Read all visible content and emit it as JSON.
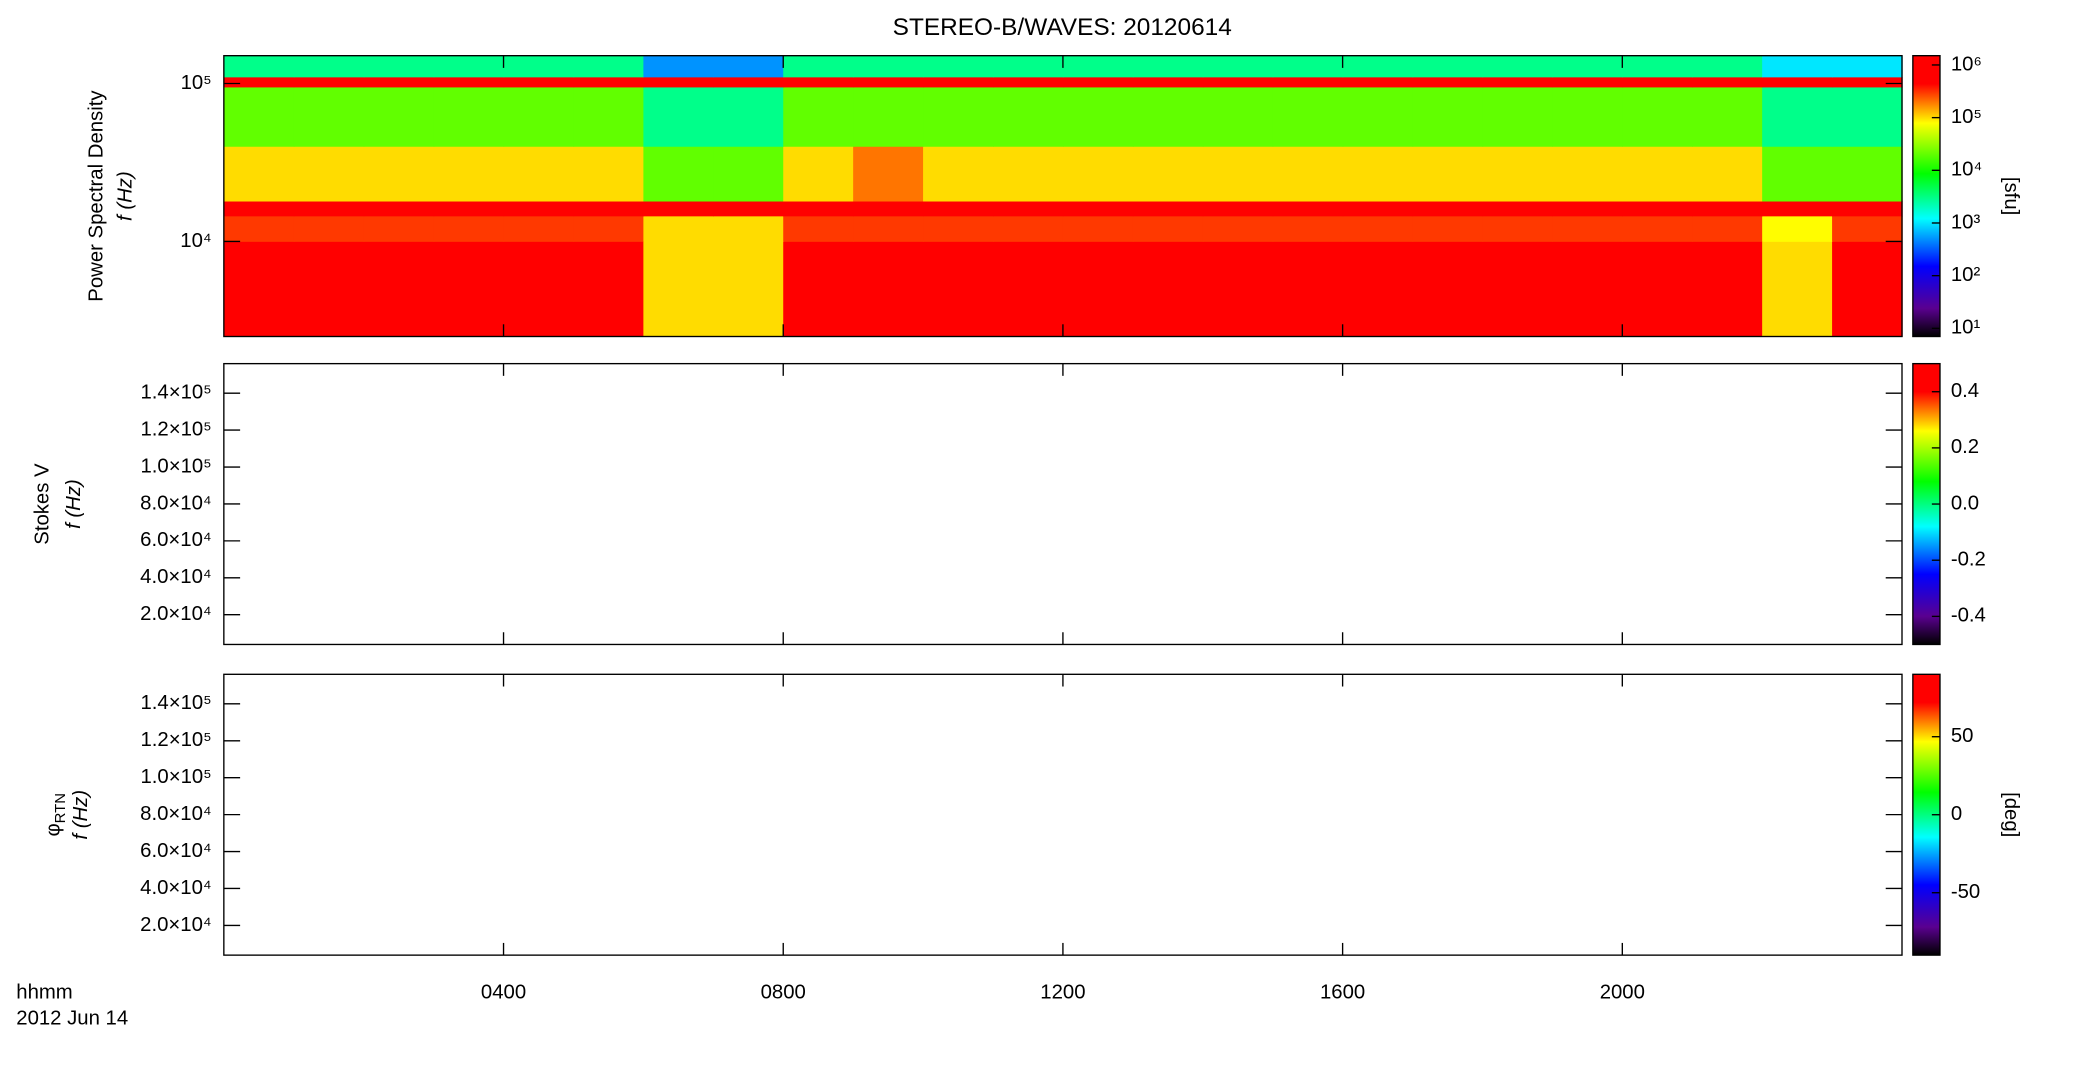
{
  "chart_data": [
    {
      "type": "heatmap",
      "title": "STEREO-B/WAVES: 20120614",
      "ylabel": "Power Spectral Density",
      "ylabel2": "f (Hz)",
      "ylog": true,
      "xlim": [
        0,
        24
      ],
      "xticks": [
        4,
        8,
        12,
        16,
        20
      ],
      "ylim": [
        2500,
        150000
      ],
      "yticks": [
        {
          "value": 10000,
          "label": "10⁴"
        },
        {
          "value": 100000,
          "label": "10⁵"
        }
      ],
      "xbins": [
        0,
        1,
        2,
        3,
        4,
        5,
        6,
        7,
        8,
        9,
        10,
        11,
        12,
        13,
        14,
        15,
        16,
        17,
        18,
        19,
        20,
        21,
        22,
        23,
        24
      ],
      "ybins": [
        2500,
        10000,
        14500,
        18000,
        40000,
        95000,
        110000,
        150000
      ],
      "z": [
        [
          1000000,
          1000000,
          1000000,
          1000000,
          1000000,
          1000000,
          100000,
          100000,
          800000,
          800000,
          1000000,
          1000000,
          1000000,
          1000000,
          1000000,
          1000000,
          1000000,
          1000000,
          1000000,
          1000000,
          1000000,
          1000000,
          100000,
          1000000
        ],
        [
          300000,
          300000,
          300000,
          300000,
          300000,
          300000,
          100000,
          100000,
          300000,
          300000,
          300000,
          300000,
          300000,
          300000,
          300000,
          300000,
          300000,
          300000,
          300000,
          300000,
          300000,
          300000,
          80000,
          300000
        ],
        [
          1200000,
          1200000,
          1200000,
          1200000,
          1200000,
          1200000,
          1200000,
          1200000,
          1200000,
          1200000,
          1200000,
          1200000,
          1200000,
          1200000,
          1200000,
          1200000,
          1200000,
          1200000,
          1200000,
          1200000,
          1200000,
          1200000,
          1200000,
          1200000
        ],
        [
          100000,
          100000,
          100000,
          100000,
          100000,
          100000,
          20000,
          20000,
          100000,
          200000,
          100000,
          100000,
          100000,
          100000,
          100000,
          100000,
          100000,
          100000,
          100000,
          100000,
          100000,
          100000,
          20000,
          20000
        ],
        [
          20000,
          20000,
          20000,
          20000,
          20000,
          20000,
          3000,
          3000,
          20000,
          20000,
          20000,
          20000,
          20000,
          20000,
          20000,
          20000,
          20000,
          20000,
          20000,
          20000,
          20000,
          20000,
          3000,
          3000
        ],
        [
          500000,
          500000,
          500000,
          500000,
          500000,
          500000,
          500000,
          500000,
          500000,
          500000,
          500000,
          500000,
          500000,
          500000,
          500000,
          500000,
          500000,
          500000,
          500000,
          500000,
          500000,
          500000,
          500000,
          500000
        ],
        [
          3000,
          3000,
          3000,
          3000,
          3000,
          3000,
          500,
          500,
          3000,
          3000,
          3000,
          3000,
          3000,
          3000,
          3000,
          3000,
          3000,
          3000,
          3000,
          3000,
          3000,
          3000,
          1000,
          1000
        ]
      ],
      "colorbar": {
        "label": "[sfu]",
        "log": true,
        "zlim": [
          7,
          1500000
        ],
        "ticks": [
          {
            "value": 10,
            "label": "10¹"
          },
          {
            "value": 100,
            "label": "10²"
          },
          {
            "value": 1000,
            "label": "10³"
          },
          {
            "value": 10000,
            "label": "10⁴"
          },
          {
            "value": 100000,
            "label": "10⁵"
          },
          {
            "value": 1000000,
            "label": "10⁶"
          }
        ]
      }
    },
    {
      "type": "heatmap",
      "ylabel": "Stokes V",
      "ylabel2": "f (Hz)",
      "xlim": [
        0,
        24
      ],
      "xticks": [
        4,
        8,
        12,
        16,
        20
      ],
      "ylim": [
        3900,
        156000
      ],
      "yticks": [
        {
          "value": 20000,
          "label": "2.0×10⁴"
        },
        {
          "value": 40000,
          "label": "4.0×10⁴"
        },
        {
          "value": 60000,
          "label": "6.0×10⁴"
        },
        {
          "value": 80000,
          "label": "8.0×10⁴"
        },
        {
          "value": 100000,
          "label": "1.0×10⁵"
        },
        {
          "value": 120000,
          "label": "1.2×10⁵"
        },
        {
          "value": 140000,
          "label": "1.4×10⁵"
        }
      ],
      "colorbar": {
        "zlim": [
          -0.5,
          0.5
        ],
        "ticks": [
          -0.4,
          -0.2,
          {
            "value": 0,
            "label": "0.0"
          },
          0.2,
          0.4
        ]
      }
    },
    {
      "type": "heatmap",
      "ylabel": "φ",
      "ylabel_sub": "RTN",
      "ylabel2": "f (Hz)",
      "xlim": [
        0,
        24
      ],
      "xticks": [
        {
          "value": 4,
          "label": "0400"
        },
        {
          "value": 8,
          "label": "0800"
        },
        {
          "value": 12,
          "label": "1200"
        },
        {
          "value": 16,
          "label": "1600"
        },
        {
          "value": 20,
          "label": "2000"
        }
      ],
      "xlabel": "hhmm",
      "date_label": "2012 Jun 14",
      "ylim": [
        3900,
        156000
      ],
      "yticks": [
        {
          "value": 20000,
          "label": "2.0×10⁴"
        },
        {
          "value": 40000,
          "label": "4.0×10⁴"
        },
        {
          "value": 60000,
          "label": "6.0×10⁴"
        },
        {
          "value": 80000,
          "label": "8.0×10⁴"
        },
        {
          "value": 100000,
          "label": "1.0×10⁵"
        },
        {
          "value": 120000,
          "label": "1.2×10⁵"
        },
        {
          "value": 140000,
          "label": "1.4×10⁵"
        }
      ],
      "colorbar": {
        "label": "[deg]",
        "zlim": [
          -90,
          90
        ],
        "ticks": [
          -50,
          0,
          50
        ]
      }
    }
  ]
}
